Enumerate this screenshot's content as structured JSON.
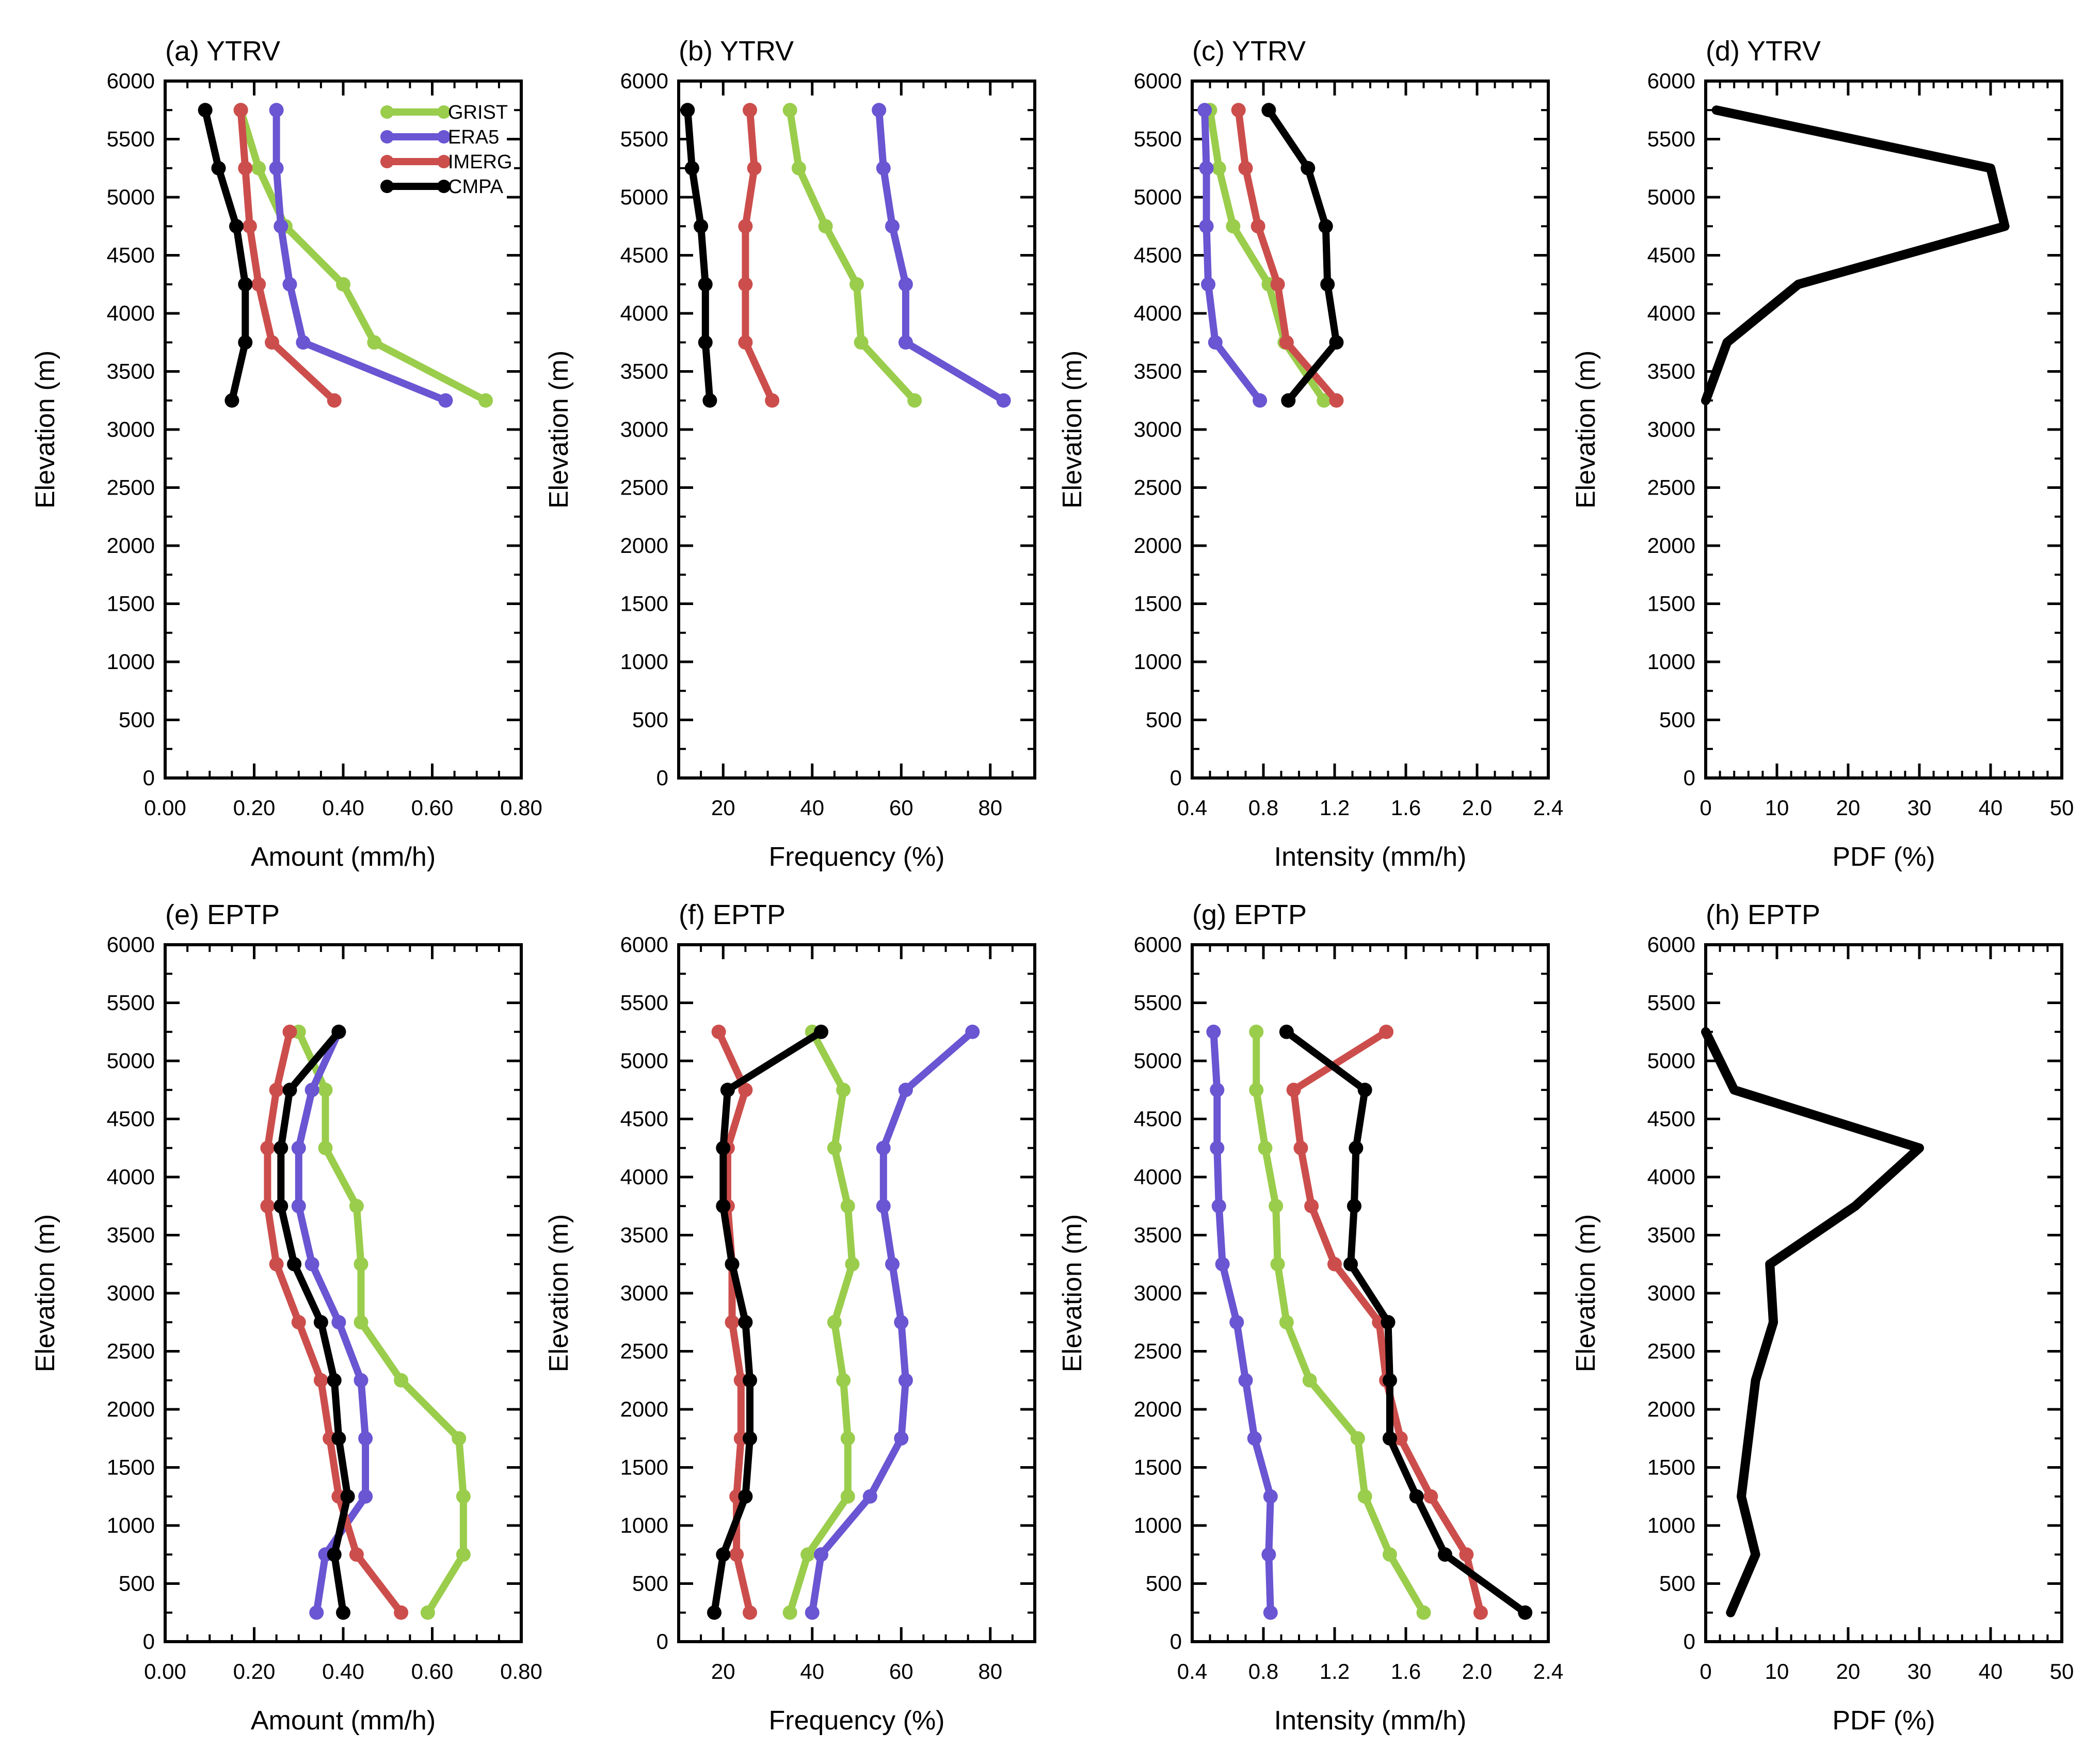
{
  "figure": {
    "series_colors": {
      "GRIST": "#9acd4c",
      "ERA5": "#6a55d2",
      "IMERG": "#cc4e4c",
      "CMPA": "#000000"
    },
    "legend": [
      "GRIST",
      "ERA5",
      "IMERG",
      "CMPA"
    ]
  },
  "chart_data": [
    {
      "type": "line",
      "title": "(a) YTRV",
      "xlabel": "Amount (mm/h)",
      "ylabel": "Elevation (m)",
      "xlim": [
        0,
        0.8
      ],
      "xticks": [
        0,
        0.2,
        0.4,
        0.6,
        0.8
      ],
      "xticklabels": [
        "0.00",
        "0.20",
        "0.40",
        "0.60",
        "0.80"
      ],
      "xminor": 0.05,
      "ylim": [
        0,
        6000
      ],
      "yticks": [
        0,
        500,
        1000,
        1500,
        2000,
        2500,
        3000,
        3500,
        4000,
        4500,
        5000,
        5500,
        6000
      ],
      "yticklabels": [
        "0",
        "500",
        "1000",
        "1500",
        "2000",
        "2500",
        "3000",
        "3500",
        "4000",
        "4500",
        "5000",
        "5500",
        "6000"
      ],
      "legend": true,
      "series": [
        {
          "name": "GRIST",
          "y": [
            3250,
            3750,
            4250,
            4750,
            5250,
            5750
          ],
          "x": [
            0.72,
            0.47,
            0.4,
            0.27,
            0.21,
            0.17
          ]
        },
        {
          "name": "ERA5",
          "y": [
            3250,
            3750,
            4250,
            4750,
            5250,
            5750
          ],
          "x": [
            0.63,
            0.31,
            0.28,
            0.26,
            0.25,
            0.25
          ]
        },
        {
          "name": "IMERG",
          "y": [
            3250,
            3750,
            4250,
            4750,
            5250,
            5750
          ],
          "x": [
            0.38,
            0.24,
            0.21,
            0.19,
            0.18,
            0.17
          ]
        },
        {
          "name": "CMPA",
          "y": [
            3250,
            3750,
            4250,
            4750,
            5250,
            5750
          ],
          "x": [
            0.15,
            0.18,
            0.18,
            0.16,
            0.12,
            0.09
          ]
        }
      ]
    },
    {
      "type": "line",
      "title": "(b) YTRV",
      "xlabel": "Frequency (%)",
      "ylabel": "Elevation (m)",
      "xlim": [
        10,
        90
      ],
      "xticks": [
        20,
        40,
        60,
        80
      ],
      "xticklabels": [
        "20",
        "40",
        "60",
        "80"
      ],
      "xminor": 5,
      "ylim": [
        0,
        6000
      ],
      "yticks": [
        0,
        500,
        1000,
        1500,
        2000,
        2500,
        3000,
        3500,
        4000,
        4500,
        5000,
        5500,
        6000
      ],
      "yticklabels": [
        "0",
        "500",
        "1000",
        "1500",
        "2000",
        "2500",
        "3000",
        "3500",
        "4000",
        "4500",
        "5000",
        "5500",
        "6000"
      ],
      "series": [
        {
          "name": "GRIST",
          "y": [
            3250,
            3750,
            4250,
            4750,
            5250,
            5750
          ],
          "x": [
            63,
            51,
            50,
            43,
            37,
            35
          ]
        },
        {
          "name": "ERA5",
          "y": [
            3250,
            3750,
            4250,
            4750,
            5250,
            5750
          ],
          "x": [
            83,
            61,
            61,
            58,
            56,
            55
          ]
        },
        {
          "name": "IMERG",
          "y": [
            3250,
            3750,
            4250,
            4750,
            5250,
            5750
          ],
          "x": [
            31,
            25,
            25,
            25,
            27,
            26
          ]
        },
        {
          "name": "CMPA",
          "y": [
            3250,
            3750,
            4250,
            4750,
            5250,
            5750
          ],
          "x": [
            17,
            16,
            16,
            15,
            13,
            12
          ]
        }
      ]
    },
    {
      "type": "line",
      "title": "(c) YTRV",
      "xlabel": "Intensity (mm/h)",
      "ylabel": "Elevation (m)",
      "xlim": [
        0.4,
        2.4
      ],
      "xticks": [
        0.4,
        0.8,
        1.2,
        1.6,
        2.0,
        2.4
      ],
      "xticklabels": [
        "0.4",
        "0.8",
        "1.2",
        "1.6",
        "2.0",
        "2.4"
      ],
      "xminor": 0.1,
      "ylim": [
        0,
        6000
      ],
      "yticks": [
        0,
        500,
        1000,
        1500,
        2000,
        2500,
        3000,
        3500,
        4000,
        4500,
        5000,
        5500,
        6000
      ],
      "yticklabels": [
        "0",
        "500",
        "1000",
        "1500",
        "2000",
        "2500",
        "3000",
        "3500",
        "4000",
        "4500",
        "5000",
        "5500",
        "6000"
      ],
      "series": [
        {
          "name": "GRIST",
          "y": [
            3250,
            3750,
            4250,
            4750,
            5250,
            5750
          ],
          "x": [
            1.14,
            0.92,
            0.83,
            0.63,
            0.55,
            0.5
          ]
        },
        {
          "name": "ERA5",
          "y": [
            3250,
            3750,
            4250,
            4750,
            5250,
            5750
          ],
          "x": [
            0.78,
            0.53,
            0.49,
            0.48,
            0.48,
            0.47
          ]
        },
        {
          "name": "IMERG",
          "y": [
            3250,
            3750,
            4250,
            4750,
            5250,
            5750
          ],
          "x": [
            1.21,
            0.93,
            0.88,
            0.77,
            0.7,
            0.66
          ]
        },
        {
          "name": "CMPA",
          "y": [
            3250,
            3750,
            4250,
            4750,
            5250,
            5750
          ],
          "x": [
            0.94,
            1.21,
            1.16,
            1.15,
            1.05,
            0.83
          ]
        }
      ]
    },
    {
      "type": "line",
      "title": "(d) YTRV",
      "xlabel": "PDF (%)",
      "ylabel": "Elevation (m)",
      "xlim": [
        0,
        50
      ],
      "xticks": [
        0,
        10,
        20,
        30,
        40,
        50
      ],
      "xticklabels": [
        "0",
        "10",
        "20",
        "30",
        "40",
        "50"
      ],
      "xminor": 2,
      "ylim": [
        0,
        6000
      ],
      "yticks": [
        0,
        500,
        1000,
        1500,
        2000,
        2500,
        3000,
        3500,
        4000,
        4500,
        5000,
        5500,
        6000
      ],
      "yticklabels": [
        "0",
        "500",
        "1000",
        "1500",
        "2000",
        "2500",
        "3000",
        "3500",
        "4000",
        "4500",
        "5000",
        "5500",
        "6000"
      ],
      "series": [
        {
          "name": "CMPA",
          "markers": false,
          "y": [
            3250,
            3750,
            4250,
            4750,
            5250,
            5750
          ],
          "x": [
            0,
            3,
            13,
            42,
            40,
            1.5
          ]
        }
      ]
    },
    {
      "type": "line",
      "title": "(e) EPTP",
      "xlabel": "Amount (mm/h)",
      "ylabel": "Elevation (m)",
      "xlim": [
        0,
        0.8
      ],
      "xticks": [
        0,
        0.2,
        0.4,
        0.6,
        0.8
      ],
      "xticklabels": [
        "0.00",
        "0.20",
        "0.40",
        "0.60",
        "0.80"
      ],
      "xminor": 0.05,
      "ylim": [
        0,
        6000
      ],
      "yticks": [
        0,
        500,
        1000,
        1500,
        2000,
        2500,
        3000,
        3500,
        4000,
        4500,
        5000,
        5500,
        6000
      ],
      "yticklabels": [
        "0",
        "500",
        "1000",
        "1500",
        "2000",
        "2500",
        "3000",
        "3500",
        "4000",
        "4500",
        "5000",
        "5500",
        "6000"
      ],
      "series": [
        {
          "name": "GRIST",
          "y": [
            250,
            750,
            1250,
            1750,
            2250,
            2750,
            3250,
            3750,
            4250,
            4750,
            5250
          ],
          "x": [
            0.59,
            0.67,
            0.67,
            0.66,
            0.53,
            0.44,
            0.44,
            0.43,
            0.36,
            0.36,
            0.3
          ]
        },
        {
          "name": "ERA5",
          "y": [
            250,
            750,
            1250,
            1750,
            2250,
            2750,
            3250,
            3750,
            4250,
            4750,
            5250
          ],
          "x": [
            0.34,
            0.36,
            0.45,
            0.45,
            0.44,
            0.39,
            0.33,
            0.3,
            0.3,
            0.33,
            0.39
          ]
        },
        {
          "name": "IMERG",
          "y": [
            250,
            750,
            1250,
            1750,
            2250,
            2750,
            3250,
            3750,
            4250,
            4750,
            5250
          ],
          "x": [
            0.53,
            0.43,
            0.39,
            0.37,
            0.35,
            0.3,
            0.25,
            0.23,
            0.23,
            0.25,
            0.28
          ]
        },
        {
          "name": "CMPA",
          "y": [
            250,
            750,
            1250,
            1750,
            2250,
            2750,
            3250,
            3750,
            4250,
            4750,
            5250
          ],
          "x": [
            0.4,
            0.38,
            0.41,
            0.39,
            0.38,
            0.35,
            0.29,
            0.26,
            0.26,
            0.28,
            0.39
          ]
        }
      ]
    },
    {
      "type": "line",
      "title": "(f) EPTP",
      "xlabel": "Frequency (%)",
      "ylabel": "Elevation (m)",
      "xlim": [
        10,
        90
      ],
      "xticks": [
        20,
        40,
        60,
        80
      ],
      "xticklabels": [
        "20",
        "40",
        "60",
        "80"
      ],
      "xminor": 5,
      "ylim": [
        0,
        6000
      ],
      "yticks": [
        0,
        500,
        1000,
        1500,
        2000,
        2500,
        3000,
        3500,
        4000,
        4500,
        5000,
        5500,
        6000
      ],
      "yticklabels": [
        "0",
        "500",
        "1000",
        "1500",
        "2000",
        "2500",
        "3000",
        "3500",
        "4000",
        "4500",
        "5000",
        "5500",
        "6000"
      ],
      "series": [
        {
          "name": "GRIST",
          "y": [
            250,
            750,
            1250,
            1750,
            2250,
            2750,
            3250,
            3750,
            4250,
            4750,
            5250
          ],
          "x": [
            35,
            39,
            48,
            48,
            47,
            45,
            49,
            48,
            45,
            47,
            40
          ]
        },
        {
          "name": "ERA5",
          "y": [
            250,
            750,
            1250,
            1750,
            2250,
            2750,
            3250,
            3750,
            4250,
            4750,
            5250
          ],
          "x": [
            40,
            42,
            53,
            60,
            61,
            60,
            58,
            56,
            56,
            61,
            76
          ]
        },
        {
          "name": "IMERG",
          "y": [
            250,
            750,
            1250,
            1750,
            2250,
            2750,
            3250,
            3750,
            4250,
            4750,
            5250
          ],
          "x": [
            26,
            23,
            23,
            24,
            24,
            22,
            22,
            21,
            21,
            25,
            19
          ]
        },
        {
          "name": "CMPA",
          "y": [
            250,
            750,
            1250,
            1750,
            2250,
            2750,
            3250,
            3750,
            4250,
            4750,
            5250
          ],
          "x": [
            18,
            20,
            25,
            26,
            26,
            25,
            22,
            20,
            20,
            21,
            42
          ]
        }
      ]
    },
    {
      "type": "line",
      "title": "(g) EPTP",
      "xlabel": "Intensity (mm/h)",
      "ylabel": "Elevation (m)",
      "xlim": [
        0.4,
        2.4
      ],
      "xticks": [
        0.4,
        0.8,
        1.2,
        1.6,
        2.0,
        2.4
      ],
      "xticklabels": [
        "0.4",
        "0.8",
        "1.2",
        "1.6",
        "2.0",
        "2.4"
      ],
      "xminor": 0.1,
      "ylim": [
        0,
        6000
      ],
      "yticks": [
        0,
        500,
        1000,
        1500,
        2000,
        2500,
        3000,
        3500,
        4000,
        4500,
        5000,
        5500,
        6000
      ],
      "yticklabels": [
        "0",
        "500",
        "1000",
        "1500",
        "2000",
        "2500",
        "3000",
        "3500",
        "4000",
        "4500",
        "5000",
        "5500",
        "6000"
      ],
      "series": [
        {
          "name": "GRIST",
          "y": [
            250,
            750,
            1250,
            1750,
            2250,
            2750,
            3250,
            3750,
            4250,
            4750,
            5250
          ],
          "x": [
            1.7,
            1.51,
            1.37,
            1.33,
            1.06,
            0.93,
            0.88,
            0.87,
            0.81,
            0.76,
            0.76
          ]
        },
        {
          "name": "ERA5",
          "y": [
            250,
            750,
            1250,
            1750,
            2250,
            2750,
            3250,
            3750,
            4250,
            4750,
            5250
          ],
          "x": [
            0.84,
            0.83,
            0.84,
            0.75,
            0.7,
            0.65,
            0.57,
            0.55,
            0.54,
            0.54,
            0.52
          ]
        },
        {
          "name": "IMERG",
          "y": [
            250,
            750,
            1250,
            1750,
            2250,
            2750,
            3250,
            3750,
            4250,
            4750,
            5250
          ],
          "x": [
            2.02,
            1.94,
            1.74,
            1.57,
            1.49,
            1.45,
            1.2,
            1.07,
            1.01,
            0.97,
            1.49
          ]
        },
        {
          "name": "CMPA",
          "y": [
            250,
            750,
            1250,
            1750,
            2250,
            2750,
            3250,
            3750,
            4250,
            4750,
            5250
          ],
          "x": [
            2.27,
            1.82,
            1.66,
            1.51,
            1.51,
            1.5,
            1.29,
            1.31,
            1.32,
            1.37,
            0.93
          ]
        }
      ]
    },
    {
      "type": "line",
      "title": "(h) EPTP",
      "xlabel": "PDF (%)",
      "ylabel": "Elevation (m)",
      "xlim": [
        0,
        50
      ],
      "xticks": [
        0,
        10,
        20,
        30,
        40,
        50
      ],
      "xticklabels": [
        "0",
        "10",
        "20",
        "30",
        "40",
        "50"
      ],
      "xminor": 2,
      "ylim": [
        0,
        6000
      ],
      "yticks": [
        0,
        500,
        1000,
        1500,
        2000,
        2500,
        3000,
        3500,
        4000,
        4500,
        5000,
        5500,
        6000
      ],
      "yticklabels": [
        "0",
        "500",
        "1000",
        "1500",
        "2000",
        "2500",
        "3000",
        "3500",
        "4000",
        "4500",
        "5000",
        "5500",
        "6000"
      ],
      "series": [
        {
          "name": "CMPA",
          "markers": false,
          "y": [
            250,
            750,
            1250,
            1750,
            2250,
            2750,
            3250,
            3750,
            4250,
            4750,
            5250
          ],
          "x": [
            3.5,
            7,
            5,
            6,
            7,
            9.5,
            9,
            21,
            30,
            4,
            0
          ]
        }
      ]
    }
  ]
}
